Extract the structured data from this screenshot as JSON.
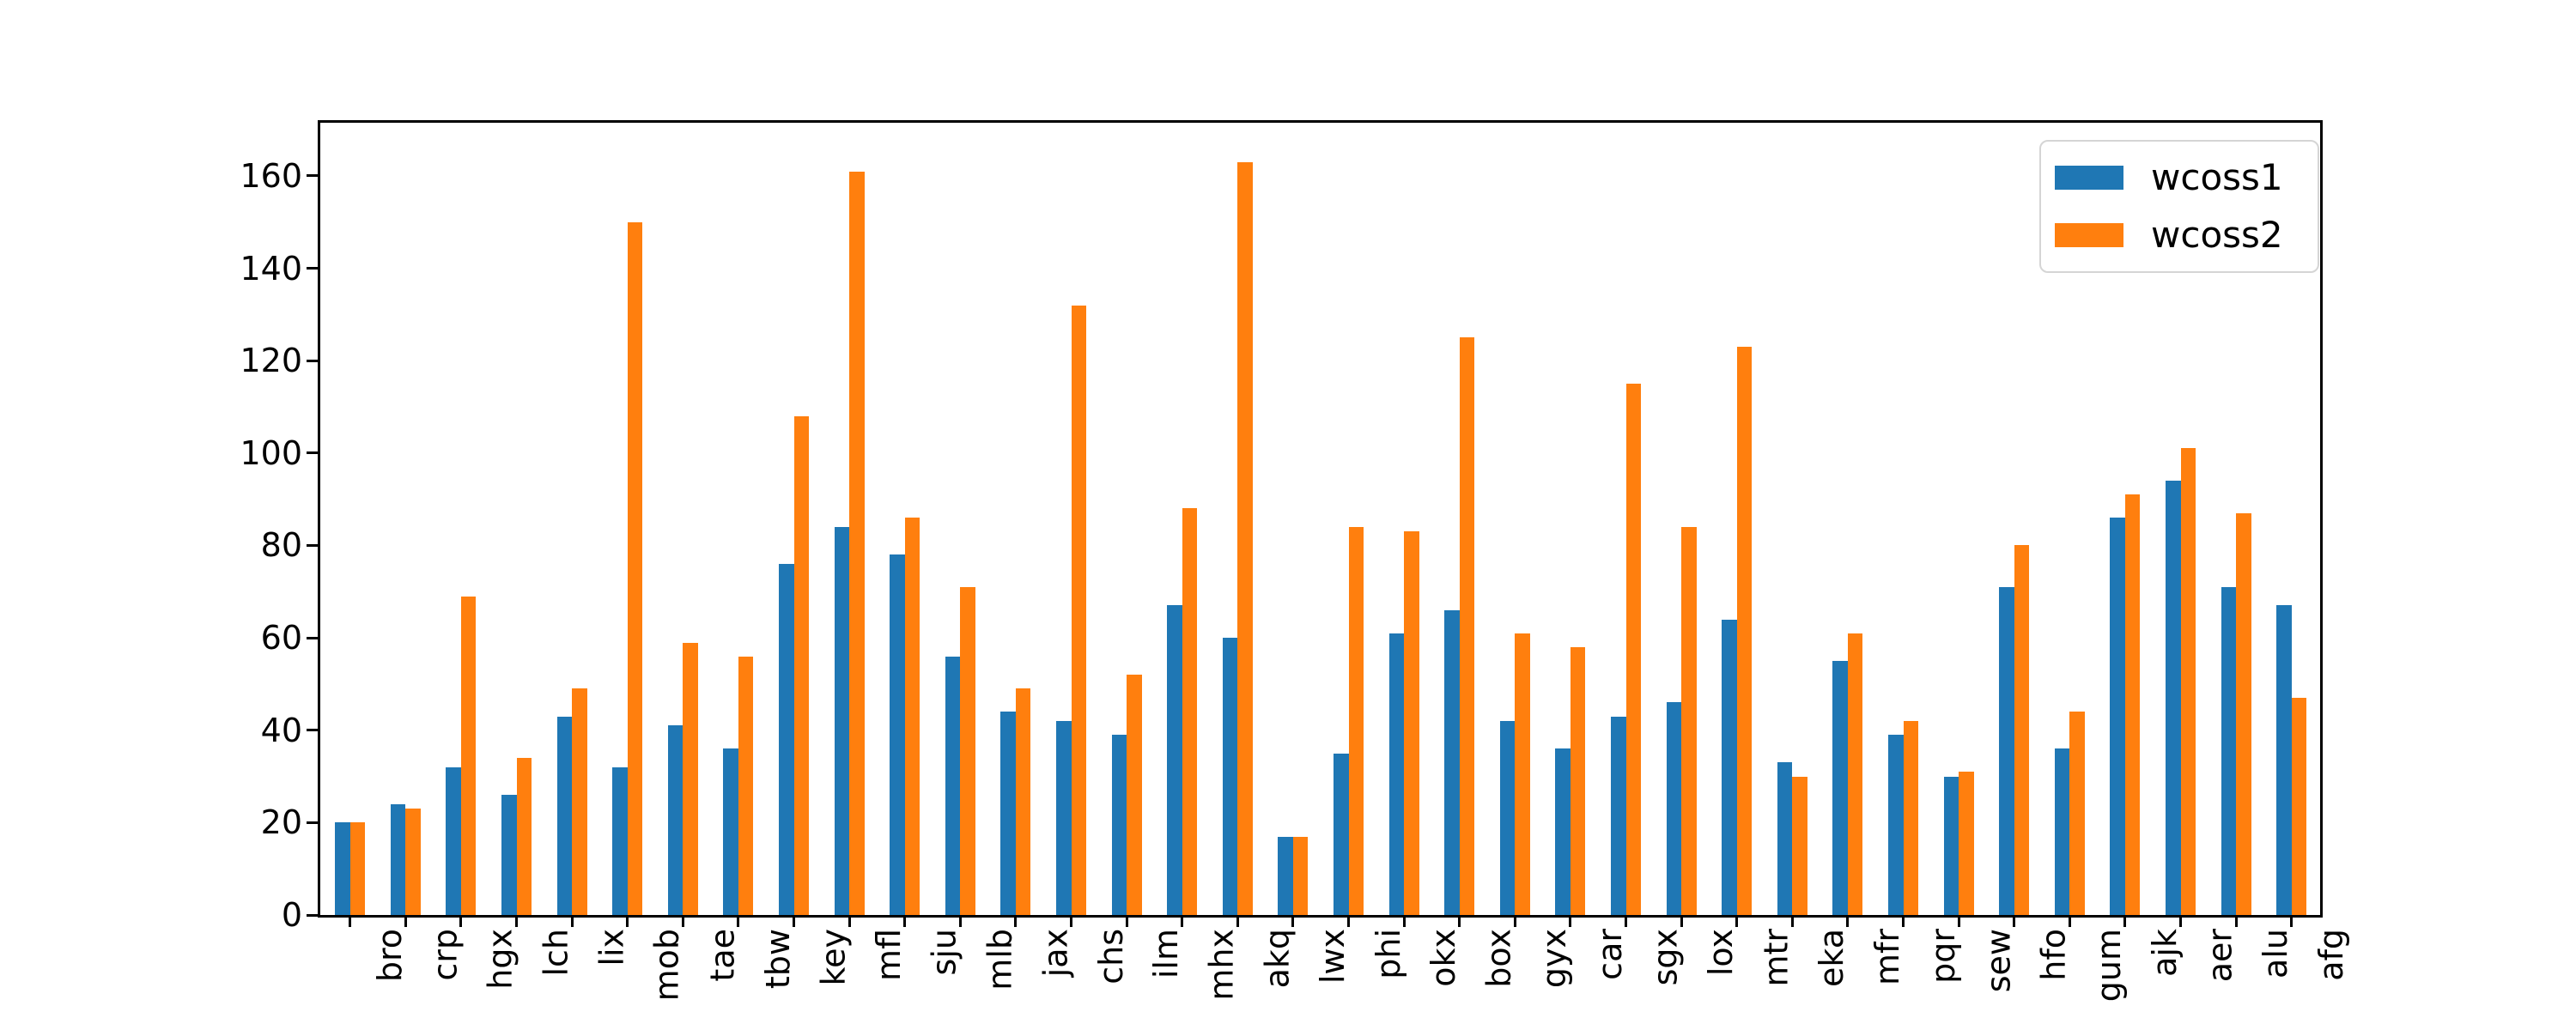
{
  "figure": {
    "background_color": "#ffffff",
    "text_color": "#000000"
  },
  "chart_data": {
    "type": "bar",
    "title": "",
    "xlabel": "",
    "ylabel": "",
    "grid": false,
    "legend_position": "upper right",
    "x_tick_rotation": 90,
    "yticks": [
      0,
      20,
      40,
      60,
      80,
      100,
      120,
      140,
      160
    ],
    "ylim": [
      0,
      171.5
    ],
    "categories": [
      "bro",
      "crp",
      "hgx",
      "lch",
      "lix",
      "mob",
      "tae",
      "tbw",
      "key",
      "mfl",
      "sju",
      "mlb",
      "jax",
      "chs",
      "ilm",
      "mhx",
      "akq",
      "lwx",
      "phi",
      "okx",
      "box",
      "gyx",
      "car",
      "sgx",
      "lox",
      "mtr",
      "eka",
      "mfr",
      "pqr",
      "sew",
      "hfo",
      "gum",
      "ajk",
      "aer",
      "alu",
      "afg"
    ],
    "series": [
      {
        "name": "wcoss1",
        "color": "#1f77b4",
        "values": [
          20,
          24,
          32,
          26,
          43,
          32,
          41,
          36,
          76,
          84,
          78,
          56,
          44,
          42,
          39,
          67,
          60,
          17,
          35,
          61,
          66,
          42,
          36,
          43,
          46,
          64,
          33,
          55,
          39,
          30,
          71,
          36,
          86,
          94,
          71,
          67
        ]
      },
      {
        "name": "wcoss2",
        "color": "#ff7f0e",
        "values": [
          20,
          23,
          69,
          34,
          49,
          150,
          59,
          56,
          108,
          161,
          86,
          71,
          49,
          132,
          52,
          88,
          163,
          17,
          84,
          83,
          125,
          61,
          58,
          115,
          84,
          123,
          30,
          61,
          42,
          31,
          80,
          44,
          91,
          101,
          87,
          47
        ]
      }
    ]
  }
}
